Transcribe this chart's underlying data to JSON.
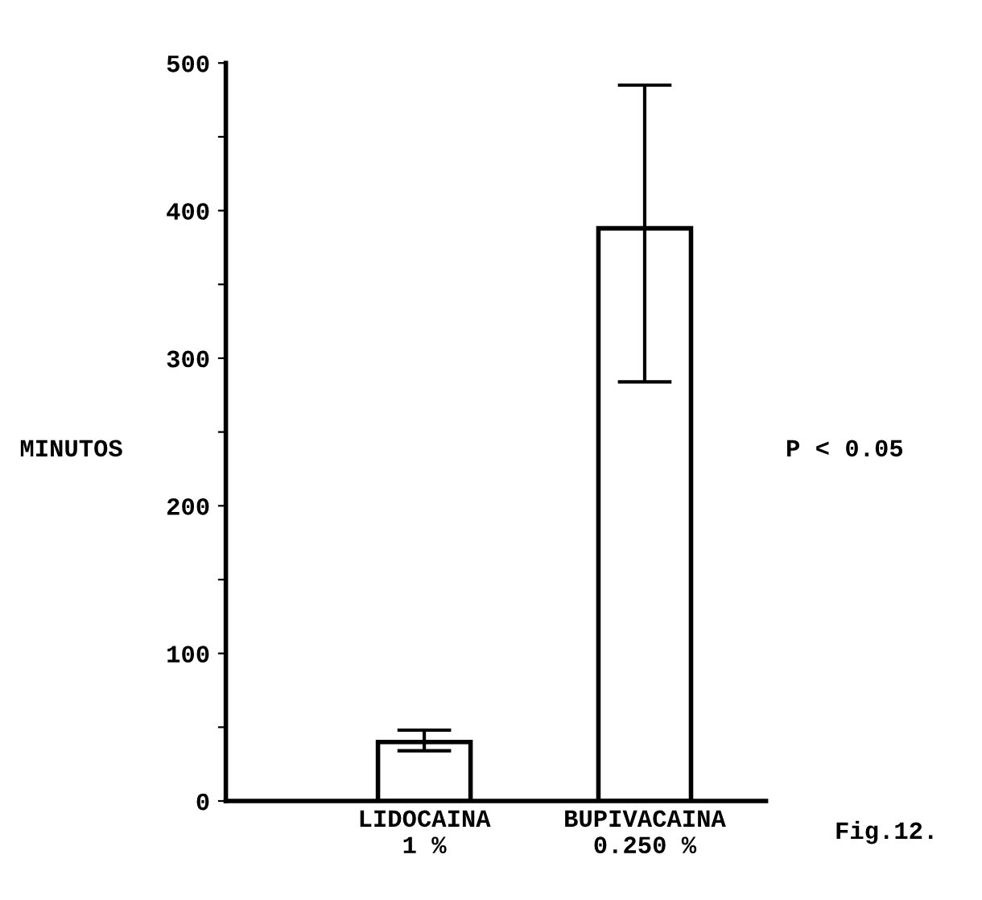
{
  "chart_data": {
    "type": "bar",
    "ylabel": "MINUTOS",
    "categories": [
      "LIDOCAINA\n1 %",
      "BUPIVACAINA\n0.250 %"
    ],
    "values": [
      40,
      388
    ],
    "color": "#ffffff",
    "errors": [
      [
        34,
        48
      ],
      [
        284,
        485
      ]
    ],
    "ylim": [
      0,
      500
    ],
    "yticks": [
      0,
      {
        "value": 50,
        "label": null
      },
      100,
      {
        "value": 150,
        "label": null
      },
      200,
      {
        "value": 250,
        "label": null
      },
      300,
      {
        "value": 350,
        "label": null
      },
      400,
      {
        "value": 450,
        "label": null
      },
      500
    ],
    "grid": false,
    "annotations": [
      "P < 0.05",
      "Fig.12."
    ]
  }
}
